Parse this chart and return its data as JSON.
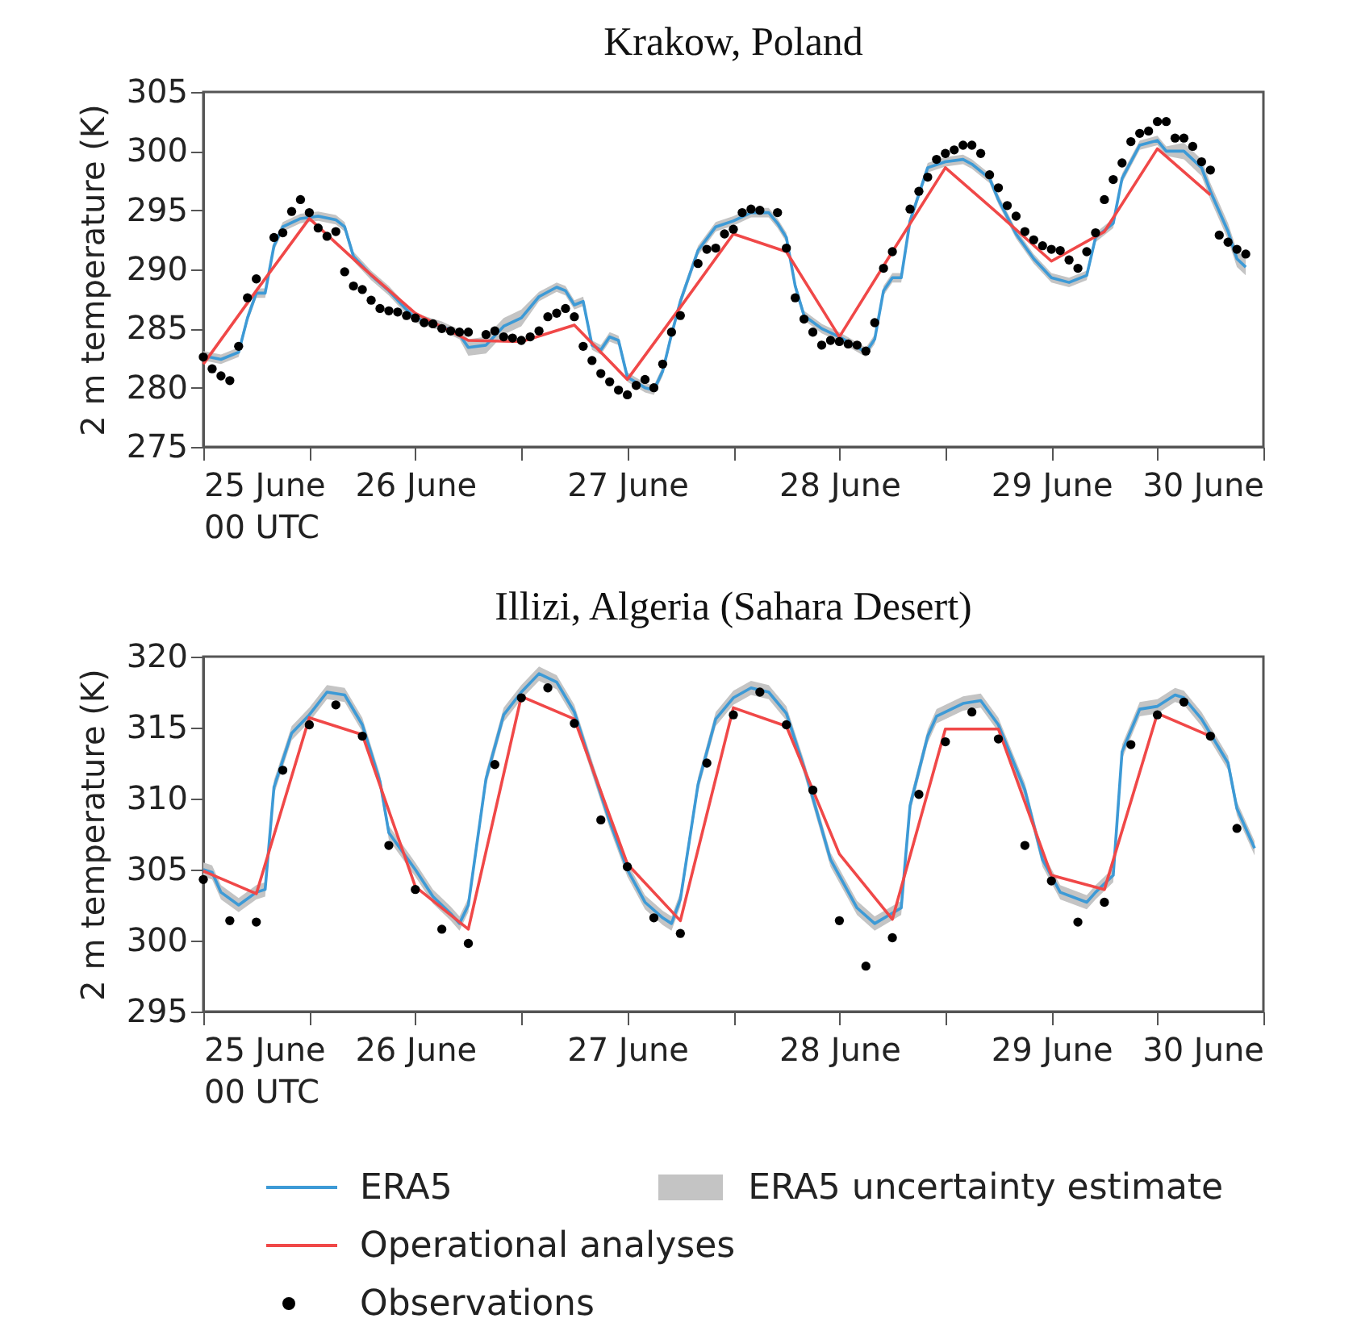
{
  "chart_data": [
    {
      "type": "line",
      "title": "Krakow, Poland",
      "ylabel": "2 m temperature (K)",
      "xlim": [
        "--06-25T00:00",
        "--06-30T00:00"
      ],
      "ylim": [
        275,
        305
      ],
      "xticks": [
        {
          "value": "--06-25T00:00",
          "label": "25 June\n00 UTC"
        },
        {
          "value": "--06-25T12:00",
          "label": null
        },
        {
          "value": "--06-26T00:00",
          "label": "26 June"
        },
        {
          "value": "--06-26T12:00",
          "label": null
        },
        {
          "value": "--06-27T00:00",
          "label": "27 June"
        },
        {
          "value": "--06-27T12:00",
          "label": null
        },
        {
          "value": "--06-28T00:00",
          "label": "28 June"
        },
        {
          "value": "--06-28T12:00",
          "label": null
        },
        {
          "value": "--06-29T00:00",
          "label": "29 June"
        },
        {
          "value": "--06-29T12:00",
          "label": null
        },
        {
          "value": "--06-30T00:00",
          "label": "30 June"
        }
      ],
      "yticks": [
        275,
        280,
        285,
        290,
        295,
        300,
        305
      ],
      "grid": false,
      "series": [
        {
          "type": "line",
          "color": "#3d9ad6",
          "x": [
            "--06-25T00:00",
            "--06-25T02:00",
            "--06-25T04:00",
            "--06-25T05:00",
            "--06-25T06:00",
            "--06-25T07:00",
            "--06-25T08:00",
            "--06-25T09:00",
            "--06-25T11:00",
            "--06-25T13:00",
            "--06-25T15:00",
            "--06-25T16:00",
            "--06-25T17:00",
            "--06-25T19:00",
            "--06-25T21:00",
            "--06-25T23:00",
            "--06-26T00:00",
            "--06-26T03:00",
            "--06-26T05:00",
            "--06-26T06:00",
            "--06-26T08:00",
            "--06-26T10:00",
            "--06-26T12:00",
            "--06-26T14:00",
            "--06-26T16:00",
            "--06-26T17:00",
            "--06-26T18:00",
            "--06-26T19:00",
            "--06-26T20:00",
            "--06-26T21:00",
            "--06-26T22:00",
            "--06-26T23:00",
            "--06-27T00:00",
            "--06-27T02:00",
            "--06-27T03:00",
            "--06-27T04:00",
            "--06-27T05:00",
            "--06-27T06:00",
            "--06-27T08:00",
            "--06-27T10:00",
            "--06-27T12:00",
            "--06-27T14:00",
            "--06-27T16:00",
            "--06-27T17:00",
            "--06-27T18:00",
            "--06-27T19:00",
            "--06-27T20:00",
            "--06-27T22:00",
            "--06-28T00:00",
            "--06-28T03:00",
            "--06-28T04:00",
            "--06-28T05:00",
            "--06-28T06:00",
            "--06-28T07:00",
            "--06-28T08:00",
            "--06-28T10:00",
            "--06-28T12:00",
            "--06-28T14:00",
            "--06-28T15:00",
            "--06-28T17:00",
            "--06-28T18:00",
            "--06-28T20:00",
            "--06-28T22:00",
            "--06-29T00:00",
            "--06-29T02:00",
            "--06-29T04:00",
            "--06-29T05:00",
            "--06-29T07:00",
            "--06-29T08:00",
            "--06-29T10:00",
            "--06-29T12:00",
            "--06-29T13:00",
            "--06-29T15:00",
            "--06-29T17:00",
            "--06-29T18:00",
            "--06-29T20:00",
            "--06-29T21:00",
            "--06-29T22:00"
          ],
          "values": [
            282.7,
            282.4,
            283,
            285.9,
            288,
            288,
            292,
            293.6,
            294.3,
            294.5,
            294.2,
            293.6,
            291.1,
            289.5,
            288.2,
            286.6,
            285.9,
            285.2,
            284.5,
            283.4,
            283.6,
            285.2,
            285.9,
            287.7,
            288.5,
            288.2,
            287,
            287.3,
            283.6,
            283.2,
            284.3,
            284,
            280.9,
            280,
            279.8,
            281.4,
            284.5,
            287.3,
            291.6,
            293.6,
            294.1,
            294.8,
            294.8,
            293.9,
            292.7,
            288.6,
            286.1,
            285,
            284.3,
            283,
            284.1,
            288.2,
            289.3,
            289.3,
            294.1,
            298.6,
            299.1,
            299.3,
            298.9,
            297.7,
            295.9,
            293,
            290.9,
            289.3,
            288.9,
            289.5,
            292.7,
            293.9,
            297.7,
            300.5,
            300.9,
            300,
            300,
            298.6,
            296.6,
            293.2,
            290.9,
            290.2
          ],
          "lower": [
            282.3,
            282.0,
            282.6,
            285.5,
            287.6,
            287.6,
            291.6,
            293.2,
            293.9,
            294.1,
            293.8,
            293.2,
            290.7,
            289.1,
            287.8,
            286.2,
            285.5,
            284.8,
            284.1,
            282.7,
            282.9,
            284.5,
            285.2,
            287.3,
            288.1,
            287.8,
            286.6,
            286.9,
            283.2,
            282.8,
            283.9,
            283.6,
            280.5,
            279.6,
            279.4,
            281.0,
            284.1,
            286.9,
            291.2,
            293.2,
            293.7,
            294.4,
            294.4,
            293.5,
            292.3,
            288.2,
            285.7,
            284.6,
            283.9,
            282.6,
            283.7,
            287.8,
            288.9,
            288.9,
            293.7,
            298.2,
            298.7,
            298.9,
            298.5,
            297.3,
            295.5,
            292.6,
            290.5,
            288.9,
            288.5,
            289.1,
            292.3,
            293.5,
            297.3,
            300.1,
            300.5,
            299.6,
            299.3,
            297.9,
            295.9,
            292.5,
            290.2,
            289.5
          ],
          "upper": [
            283.1,
            282.8,
            283.4,
            286.3,
            288.4,
            288.4,
            292.4,
            294.0,
            294.7,
            294.9,
            294.6,
            294.0,
            291.5,
            289.9,
            288.6,
            287.0,
            286.3,
            285.6,
            284.9,
            284.1,
            284.3,
            285.9,
            286.6,
            288.1,
            288.9,
            288.6,
            287.4,
            287.7,
            284.0,
            283.6,
            284.7,
            284.4,
            281.3,
            280.4,
            280.2,
            281.8,
            284.9,
            287.7,
            292.0,
            294.0,
            294.5,
            295.2,
            295.2,
            294.3,
            293.1,
            289.0,
            286.5,
            285.4,
            284.7,
            283.4,
            284.5,
            288.6,
            289.7,
            289.7,
            294.5,
            299.0,
            299.5,
            299.7,
            299.3,
            298.1,
            296.3,
            293.4,
            291.3,
            289.7,
            289.3,
            289.9,
            293.1,
            294.3,
            298.1,
            300.9,
            301.3,
            300.4,
            300.7,
            299.3,
            297.3,
            293.9,
            291.6,
            290.9
          ]
        },
        {
          "type": "line",
          "color": "#f04848",
          "x": [
            "--06-25T00:00",
            "--06-25T06:00",
            "--06-25T12:00",
            "--06-25T18:00",
            "--06-26T00:00",
            "--06-26T06:00",
            "--06-26T12:00",
            "--06-26T18:00",
            "--06-27T00:00",
            "--06-27T06:00",
            "--06-27T12:00",
            "--06-27T18:00",
            "--06-28T00:00",
            "--06-28T06:00",
            "--06-28T12:00",
            "--06-28T18:00",
            "--06-29T00:00",
            "--06-29T06:00",
            "--06-29T12:00",
            "--06-29T18:00"
          ],
          "values": [
            282,
            288.2,
            294.3,
            290.2,
            286.3,
            284,
            283.9,
            285.3,
            280.7,
            286.8,
            293,
            291.5,
            284.3,
            291.5,
            298.6,
            294.7,
            290.7,
            293.2,
            300.2,
            296.3
          ]
        },
        {
          "type": "scatter",
          "marker": "circle",
          "color": "#000000",
          "x": [
            "--06-25T00:00",
            "--06-25T01:00",
            "--06-25T02:00",
            "--06-25T03:00",
            "--06-25T04:00",
            "--06-25T05:00",
            "--06-25T06:00",
            "--06-25T08:00",
            "--06-25T09:00",
            "--06-25T10:00",
            "--06-25T11:00",
            "--06-25T12:00",
            "--06-25T13:00",
            "--06-25T14:00",
            "--06-25T15:00",
            "--06-25T16:00",
            "--06-25T17:00",
            "--06-25T18:00",
            "--06-25T19:00",
            "--06-25T20:00",
            "--06-25T21:00",
            "--06-25T22:00",
            "--06-25T23:00",
            "--06-26T00:00",
            "--06-26T01:00",
            "--06-26T02:00",
            "--06-26T03:00",
            "--06-26T04:00",
            "--06-26T05:00",
            "--06-26T06:00",
            "--06-26T08:00",
            "--06-26T09:00",
            "--06-26T10:00",
            "--06-26T11:00",
            "--06-26T12:00",
            "--06-26T13:00",
            "--06-26T14:00",
            "--06-26T15:00",
            "--06-26T16:00",
            "--06-26T17:00",
            "--06-26T18:00",
            "--06-26T19:00",
            "--06-26T20:00",
            "--06-26T21:00",
            "--06-26T22:00",
            "--06-26T23:00",
            "--06-27T00:00",
            "--06-27T01:00",
            "--06-27T02:00",
            "--06-27T03:00",
            "--06-27T04:00",
            "--06-27T05:00",
            "--06-27T06:00",
            "--06-27T08:00",
            "--06-27T09:00",
            "--06-27T10:00",
            "--06-27T11:00",
            "--06-27T12:00",
            "--06-27T13:00",
            "--06-27T14:00",
            "--06-27T15:00",
            "--06-27T17:00",
            "--06-27T18:00",
            "--06-27T19:00",
            "--06-27T20:00",
            "--06-27T21:00",
            "--06-27T22:00",
            "--06-27T23:00",
            "--06-28T00:00",
            "--06-28T01:00",
            "--06-28T02:00",
            "--06-28T03:00",
            "--06-28T04:00",
            "--06-28T05:00",
            "--06-28T06:00",
            "--06-28T08:00",
            "--06-28T09:00",
            "--06-28T10:00",
            "--06-28T11:00",
            "--06-28T12:00",
            "--06-28T13:00",
            "--06-28T14:00",
            "--06-28T15:00",
            "--06-28T16:00",
            "--06-28T17:00",
            "--06-28T18:00",
            "--06-28T19:00",
            "--06-28T20:00",
            "--06-28T21:00",
            "--06-28T22:00",
            "--06-28T23:00",
            "--06-29T00:00",
            "--06-29T01:00",
            "--06-29T02:00",
            "--06-29T03:00",
            "--06-29T04:00",
            "--06-29T05:00",
            "--06-29T06:00",
            "--06-29T07:00",
            "--06-29T08:00",
            "--06-29T09:00",
            "--06-29T10:00",
            "--06-29T11:00",
            "--06-29T12:00",
            "--06-29T13:00",
            "--06-29T14:00",
            "--06-29T15:00",
            "--06-29T16:00",
            "--06-29T17:00",
            "--06-29T18:00",
            "--06-29T19:00",
            "--06-29T20:00",
            "--06-29T21:00",
            "--06-29T22:00"
          ],
          "values": [
            282.6,
            281.6,
            281,
            280.6,
            283.5,
            287.6,
            289.2,
            292.7,
            293.1,
            294.9,
            295.9,
            294.8,
            293.5,
            292.8,
            293.2,
            289.8,
            288.6,
            288.3,
            287.4,
            286.7,
            286.5,
            286.4,
            286.1,
            285.9,
            285.5,
            285.4,
            285,
            284.8,
            284.7,
            284.7,
            284.5,
            284.8,
            284.3,
            284.2,
            284,
            284.3,
            284.8,
            286,
            286.3,
            286.7,
            286,
            283.5,
            282.3,
            281.2,
            280.5,
            279.8,
            279.4,
            280.2,
            280.7,
            280,
            282,
            284.7,
            286.1,
            290.5,
            291.7,
            291.8,
            293,
            293.4,
            294.8,
            295.1,
            295,
            294.8,
            291.8,
            287.6,
            285.8,
            284.7,
            283.6,
            284,
            283.9,
            283.7,
            283.6,
            283.1,
            285.5,
            290.1,
            291.5,
            295.1,
            296.6,
            297.8,
            299.3,
            299.8,
            300.1,
            300.5,
            300.5,
            299.8,
            298,
            296.9,
            295.4,
            294.5,
            293.2,
            292.5,
            292,
            291.7,
            291.6,
            290.8,
            290.1,
            291.5,
            293.1,
            295.9,
            297.6,
            299,
            300.8,
            301.5,
            301.7,
            302.5,
            302.5,
            301.1,
            301.1,
            300.4,
            299.1,
            298.4,
            292.9,
            292.3,
            291.7,
            291.3
          ]
        }
      ]
    },
    {
      "type": "line",
      "title": "Illizi, Algeria (Sahara Desert)",
      "ylabel": "2 m temperature (K)",
      "xlim": [
        "--06-25T00:00",
        "--06-30T00:00"
      ],
      "ylim": [
        295,
        320
      ],
      "xticks": [
        {
          "value": "--06-25T00:00",
          "label": "25 June\n00 UTC"
        },
        {
          "value": "--06-25T12:00",
          "label": null
        },
        {
          "value": "--06-26T00:00",
          "label": "26 June"
        },
        {
          "value": "--06-26T12:00",
          "label": null
        },
        {
          "value": "--06-27T00:00",
          "label": "27 June"
        },
        {
          "value": "--06-27T12:00",
          "label": null
        },
        {
          "value": "--06-28T00:00",
          "label": "28 June"
        },
        {
          "value": "--06-28T12:00",
          "label": null
        },
        {
          "value": "--06-29T00:00",
          "label": "29 June"
        },
        {
          "value": "--06-29T12:00",
          "label": null
        },
        {
          "value": "--06-30T00:00",
          "label": "30 June"
        }
      ],
      "yticks": [
        295,
        300,
        305,
        310,
        315,
        320
      ],
      "grid": false,
      "legend": "bottom",
      "annotations": [
        "ERA5 uncertainty estimate"
      ],
      "series": [
        {
          "type": "line",
          "name": "ERA5",
          "color": "#3d9ad6",
          "x": [
            "--06-25T00:00",
            "--06-25T01:00",
            "--06-25T02:00",
            "--06-25T04:00",
            "--06-25T06:00",
            "--06-25T07:00",
            "--06-25T08:00",
            "--06-25T10:00",
            "--06-25T12:00",
            "--06-25T14:00",
            "--06-25T16:00",
            "--06-25T18:00",
            "--06-25T20:00",
            "--06-25T21:00",
            "--06-26T00:00",
            "--06-26T02:00",
            "--06-26T04:00",
            "--06-26T05:00",
            "--06-26T06:00",
            "--06-26T08:00",
            "--06-26T10:00",
            "--06-26T12:00",
            "--06-26T14:00",
            "--06-26T16:00",
            "--06-26T18:00",
            "--06-26T20:00",
            "--06-26T22:00",
            "--06-27T00:00",
            "--06-27T02:00",
            "--06-27T04:00",
            "--06-27T05:00",
            "--06-27T06:00",
            "--06-27T08:00",
            "--06-27T10:00",
            "--06-27T12:00",
            "--06-27T14:00",
            "--06-27T16:00",
            "--06-27T18:00",
            "--06-27T20:00",
            "--06-27T23:00",
            "--06-28T02:00",
            "--06-28T04:00",
            "--06-28T07:00",
            "--06-28T08:00",
            "--06-28T10:00",
            "--06-28T11:00",
            "--06-28T14:00",
            "--06-28T16:00",
            "--06-28T18:00",
            "--06-28T21:00",
            "--06-28T23:00",
            "--06-29T01:00",
            "--06-29T04:00",
            "--06-29T05:00",
            "--06-29T07:00",
            "--06-29T08:00",
            "--06-29T10:00",
            "--06-29T12:00",
            "--06-29T14:00",
            "--06-29T15:00",
            "--06-29T17:00",
            "--06-29T20:00",
            "--06-29T21:00",
            "--06-29T23:00"
          ],
          "values": [
            305,
            304.8,
            303.4,
            302.5,
            303.4,
            303.6,
            310.8,
            314.6,
            315.9,
            317.5,
            317.3,
            315.2,
            311.2,
            307.6,
            305,
            303.1,
            301.9,
            301.2,
            302.5,
            311.4,
            315.9,
            317.5,
            318.8,
            318.2,
            316.1,
            312.2,
            308.4,
            305,
            302.7,
            301.6,
            301.2,
            302.9,
            311,
            315.6,
            317.1,
            317.8,
            317.5,
            316,
            312.2,
            305.7,
            302.3,
            301.2,
            302.3,
            309.5,
            314.4,
            315.8,
            316.7,
            316.9,
            315.2,
            310.6,
            305.7,
            303.4,
            302.7,
            303.4,
            304.6,
            313.3,
            316.3,
            316.5,
            317.3,
            317.1,
            315.6,
            312.5,
            309.3,
            306.5
          ],
          "lower": [
            304.5,
            304.3,
            302.9,
            302.0,
            302.9,
            303.1,
            310.3,
            314.1,
            315.4,
            317.0,
            316.8,
            314.7,
            310.7,
            307.1,
            304.5,
            302.6,
            301.4,
            300.7,
            302.0,
            310.9,
            315.4,
            317.0,
            318.3,
            317.7,
            315.6,
            311.7,
            307.9,
            304.5,
            302.2,
            301.1,
            300.7,
            302.4,
            310.5,
            315.1,
            316.6,
            317.3,
            317.0,
            315.5,
            311.7,
            305.2,
            301.8,
            300.7,
            301.8,
            309.0,
            313.9,
            315.3,
            316.2,
            316.4,
            314.7,
            310.1,
            305.2,
            302.9,
            302.2,
            302.9,
            304.1,
            312.8,
            315.8,
            316.0,
            316.8,
            316.6,
            315.1,
            312.0,
            308.8,
            306.0
          ],
          "upper": [
            305.5,
            305.3,
            303.9,
            303.0,
            303.9,
            304.1,
            311.3,
            315.1,
            316.4,
            318.0,
            317.8,
            315.7,
            311.7,
            308.1,
            305.5,
            303.6,
            302.4,
            301.7,
            303.0,
            311.9,
            316.4,
            318.0,
            319.3,
            318.7,
            316.6,
            312.7,
            308.9,
            305.5,
            303.2,
            302.1,
            301.7,
            303.4,
            311.5,
            316.1,
            317.6,
            318.3,
            318.0,
            316.5,
            312.7,
            306.2,
            302.8,
            301.7,
            302.8,
            310.0,
            314.9,
            316.3,
            317.2,
            317.4,
            315.7,
            311.1,
            306.2,
            303.9,
            303.2,
            303.9,
            305.1,
            313.8,
            316.8,
            317.0,
            317.8,
            317.6,
            316.1,
            313.0,
            309.8,
            307.0
          ]
        },
        {
          "type": "line",
          "name": "Operational analyses",
          "color": "#f04848",
          "x": [
            "--06-25T00:00",
            "--06-25T06:00",
            "--06-25T12:00",
            "--06-25T18:00",
            "--06-26T00:00",
            "--06-26T06:00",
            "--06-26T12:00",
            "--06-26T18:00",
            "--06-27T00:00",
            "--06-27T06:00",
            "--06-27T12:00",
            "--06-27T18:00",
            "--06-28T00:00",
            "--06-28T06:00",
            "--06-28T12:00",
            "--06-28T18:00",
            "--06-29T00:00",
            "--06-29T06:00",
            "--06-29T12:00",
            "--06-29T18:00"
          ],
          "values": [
            304.9,
            303.3,
            315.7,
            314.5,
            303.8,
            300.8,
            317.2,
            315.6,
            305.4,
            301.4,
            316.4,
            315.1,
            306.1,
            301.5,
            314.9,
            314.9,
            304.6,
            303.6,
            316,
            314.4
          ]
        },
        {
          "type": "scatter",
          "name": "Observations",
          "marker": "circle",
          "color": "#000000",
          "x": [
            "--06-25T00:00",
            "--06-25T03:00",
            "--06-25T06:00",
            "--06-25T09:00",
            "--06-25T12:00",
            "--06-25T15:00",
            "--06-25T18:00",
            "--06-25T21:00",
            "--06-26T00:00",
            "--06-26T03:00",
            "--06-26T06:00",
            "--06-26T09:00",
            "--06-26T12:00",
            "--06-26T15:00",
            "--06-26T18:00",
            "--06-26T21:00",
            "--06-27T00:00",
            "--06-27T03:00",
            "--06-27T06:00",
            "--06-27T09:00",
            "--06-27T12:00",
            "--06-27T15:00",
            "--06-27T18:00",
            "--06-27T21:00",
            "--06-28T00:00",
            "--06-28T03:00",
            "--06-28T06:00",
            "--06-28T09:00",
            "--06-28T12:00",
            "--06-28T15:00",
            "--06-28T18:00",
            "--06-28T21:00",
            "--06-29T00:00",
            "--06-29T03:00",
            "--06-29T06:00",
            "--06-29T09:00",
            "--06-29T12:00",
            "--06-29T15:00",
            "--06-29T18:00",
            "--06-29T21:00"
          ],
          "values": [
            304.3,
            301.4,
            301.3,
            312,
            315.2,
            316.6,
            314.4,
            306.7,
            303.6,
            300.8,
            299.8,
            312.4,
            317.1,
            317.8,
            315.3,
            308.5,
            305.2,
            301.6,
            300.5,
            312.5,
            315.9,
            317.5,
            315.2,
            310.6,
            301.4,
            298.2,
            300.2,
            310.3,
            314,
            316.1,
            314.2,
            306.7,
            304.2,
            301.3,
            302.7,
            313.8,
            315.9,
            316.8,
            314.4,
            307.9
          ]
        }
      ]
    }
  ]
}
